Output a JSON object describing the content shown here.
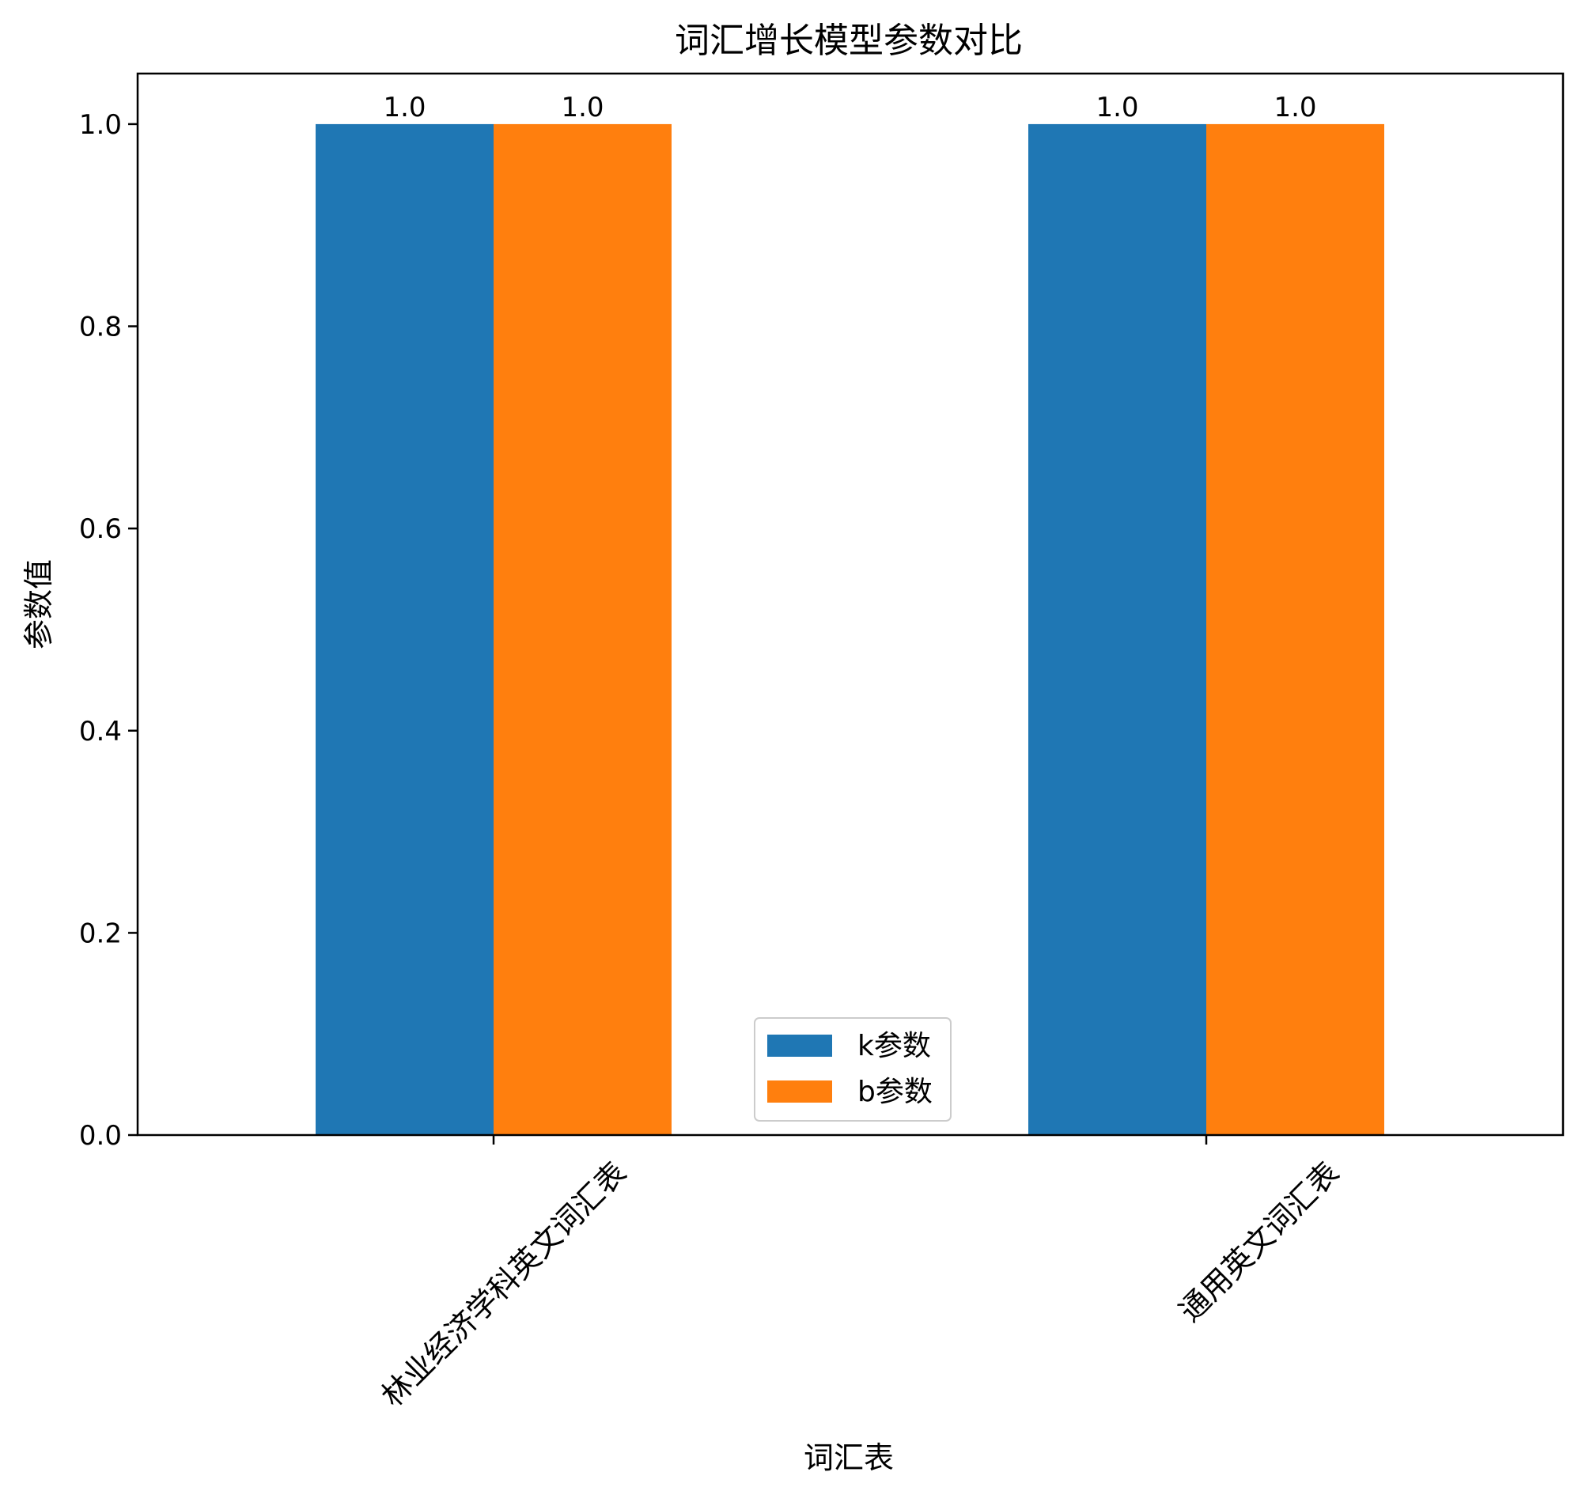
{
  "chart_data": {
    "type": "bar",
    "title": "词汇增长模型参数对比",
    "xlabel": "词汇表",
    "ylabel": "参数值",
    "categories": [
      "林业经济学科英文词汇表",
      "通用英文词汇表"
    ],
    "series": [
      {
        "name": "k参数",
        "values": [
          1.0,
          1.0
        ],
        "color": "#1f77b4"
      },
      {
        "name": "b参数",
        "values": [
          1.0,
          1.0
        ],
        "color": "#ff7f0e"
      }
    ],
    "data_labels": [
      [
        "1.0",
        "1.0"
      ],
      [
        "1.0",
        "1.0"
      ]
    ],
    "ylim": [
      0,
      1.05
    ],
    "yticks": [
      0.0,
      0.2,
      0.4,
      0.6,
      0.8,
      1.0
    ],
    "ytick_labels": [
      "0.0",
      "0.2",
      "0.4",
      "0.6",
      "0.8",
      "1.0"
    ],
    "grid": false,
    "legend_position": "lower center"
  }
}
